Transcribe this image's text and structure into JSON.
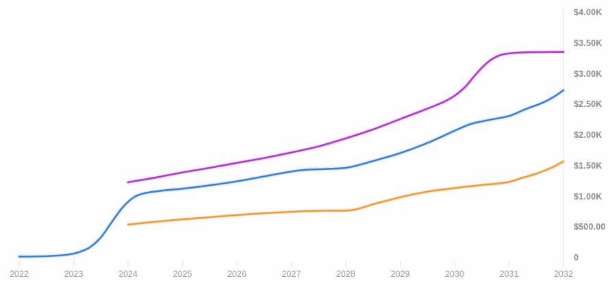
{
  "chart_data": {
    "type": "line",
    "title": "",
    "xlabel": "",
    "ylabel": "",
    "grid": false,
    "legend": "none",
    "x_axis": {
      "tick_labels": [
        "2022",
        "2023",
        "2024",
        "2025",
        "2026",
        "2027",
        "2028",
        "2029",
        "2030",
        "2031",
        "2032"
      ],
      "tick_values": [
        2022,
        2023,
        2024,
        2025,
        2026,
        2027,
        2028,
        2029,
        2030,
        2031,
        2032
      ],
      "min": 2022,
      "max": 2032
    },
    "y_axis": {
      "side": "right",
      "tick_labels": [
        "$4.00K",
        "$3.50K",
        "$3.00K",
        "$2.50K",
        "$2.00K",
        "$1.50K",
        "$1.00K",
        "$500.00",
        "0"
      ],
      "tick_values": [
        4000,
        3500,
        3000,
        2500,
        2000,
        1500,
        1000,
        500,
        0
      ],
      "min": 0,
      "max": 4000
    },
    "axis_line_color": "#e4e4e4",
    "tick_mark_color": "#dedede",
    "y_label_color": "#8d8d8d",
    "x_label_color": "#9b9b9b",
    "background_color": "#fdfdfd",
    "series": [
      {
        "name": "blue-series",
        "color": "#3a80d9",
        "points": [
          [
            2022,
            18
          ],
          [
            2022.3,
            20
          ],
          [
            2022.6,
            28
          ],
          [
            2022.9,
            50
          ],
          [
            2023.1,
            90
          ],
          [
            2023.3,
            170
          ],
          [
            2023.5,
            330
          ],
          [
            2023.7,
            580
          ],
          [
            2023.9,
            820
          ],
          [
            2024.1,
            980
          ],
          [
            2024.3,
            1050
          ],
          [
            2024.6,
            1090
          ],
          [
            2025,
            1125
          ],
          [
            2025.5,
            1180
          ],
          [
            2026,
            1245
          ],
          [
            2026.5,
            1325
          ],
          [
            2027,
            1405
          ],
          [
            2027.3,
            1435
          ],
          [
            2027.6,
            1445
          ],
          [
            2028,
            1465
          ],
          [
            2028.3,
            1525
          ],
          [
            2028.6,
            1600
          ],
          [
            2029,
            1705
          ],
          [
            2029.5,
            1870
          ],
          [
            2030,
            2070
          ],
          [
            2030.3,
            2180
          ],
          [
            2030.6,
            2240
          ],
          [
            2031,
            2310
          ],
          [
            2031.3,
            2420
          ],
          [
            2031.6,
            2520
          ],
          [
            2031.8,
            2610
          ],
          [
            2032,
            2730
          ]
        ]
      },
      {
        "name": "magenta-series",
        "color": "#b136d3",
        "points": [
          [
            2024,
            1230
          ],
          [
            2024.5,
            1305
          ],
          [
            2025,
            1390
          ],
          [
            2025.5,
            1465
          ],
          [
            2026,
            1545
          ],
          [
            2026.5,
            1625
          ],
          [
            2027,
            1715
          ],
          [
            2027.5,
            1815
          ],
          [
            2028,
            1945
          ],
          [
            2028.5,
            2090
          ],
          [
            2029,
            2260
          ],
          [
            2029.5,
            2430
          ],
          [
            2029.8,
            2540
          ],
          [
            2030,
            2640
          ],
          [
            2030.2,
            2790
          ],
          [
            2030.4,
            3000
          ],
          [
            2030.6,
            3180
          ],
          [
            2030.8,
            3290
          ],
          [
            2031,
            3330
          ],
          [
            2031.3,
            3348
          ],
          [
            2031.6,
            3352
          ],
          [
            2032,
            3355
          ]
        ]
      },
      {
        "name": "orange-series",
        "color": "#f09a38",
        "points": [
          [
            2024,
            540
          ],
          [
            2024.5,
            585
          ],
          [
            2025,
            625
          ],
          [
            2025.5,
            660
          ],
          [
            2026,
            695
          ],
          [
            2026.5,
            725
          ],
          [
            2027,
            748
          ],
          [
            2027.3,
            760
          ],
          [
            2027.6,
            765
          ],
          [
            2028,
            768
          ],
          [
            2028.2,
            790
          ],
          [
            2028.5,
            870
          ],
          [
            2028.8,
            940
          ],
          [
            2029,
            985
          ],
          [
            2029.3,
            1045
          ],
          [
            2029.6,
            1090
          ],
          [
            2030,
            1135
          ],
          [
            2030.5,
            1185
          ],
          [
            2030.8,
            1210
          ],
          [
            2031,
            1235
          ],
          [
            2031.2,
            1290
          ],
          [
            2031.5,
            1370
          ],
          [
            2031.8,
            1475
          ],
          [
            2032,
            1570
          ]
        ]
      }
    ]
  }
}
